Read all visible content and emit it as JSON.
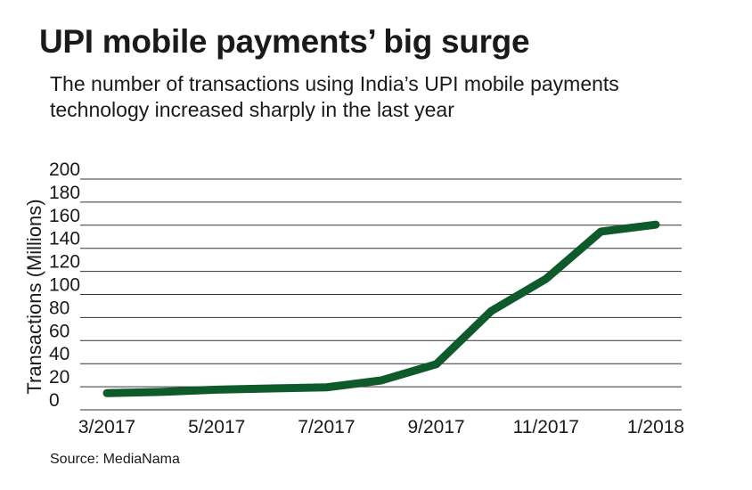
{
  "chart_data": {
    "type": "line",
    "title": "UPI mobile payments’ big surge",
    "subtitle": "The number of transactions using India’s UPI mobile payments technology increased sharply in the last year",
    "ylabel": "Transactions (Millions)",
    "xlabel": "",
    "source": "Source: MediaNama",
    "ylim": [
      0,
      200
    ],
    "y_ticks": [
      "0",
      "20",
      "40",
      "60",
      "80",
      "100",
      "120",
      "140",
      "160",
      "180",
      "200"
    ],
    "x_tick_labels": [
      "3/2017",
      "5/2017",
      "7/2017",
      "9/2017",
      "11/2017",
      "1/2018"
    ],
    "grid": true,
    "line_color": "#0e5a2b",
    "gridline_color": "#333333",
    "series": [
      {
        "x": [
          "3/2017",
          "4/2017",
          "5/2017",
          "6/2017",
          "7/2017",
          "8/2017",
          "9/2017",
          "10/2017",
          "11/2017",
          "12/2017",
          "1/2018"
        ],
        "values": [
          6,
          7,
          9,
          10,
          11,
          17,
          31,
          77,
          105,
          146,
          152
        ]
      }
    ]
  }
}
